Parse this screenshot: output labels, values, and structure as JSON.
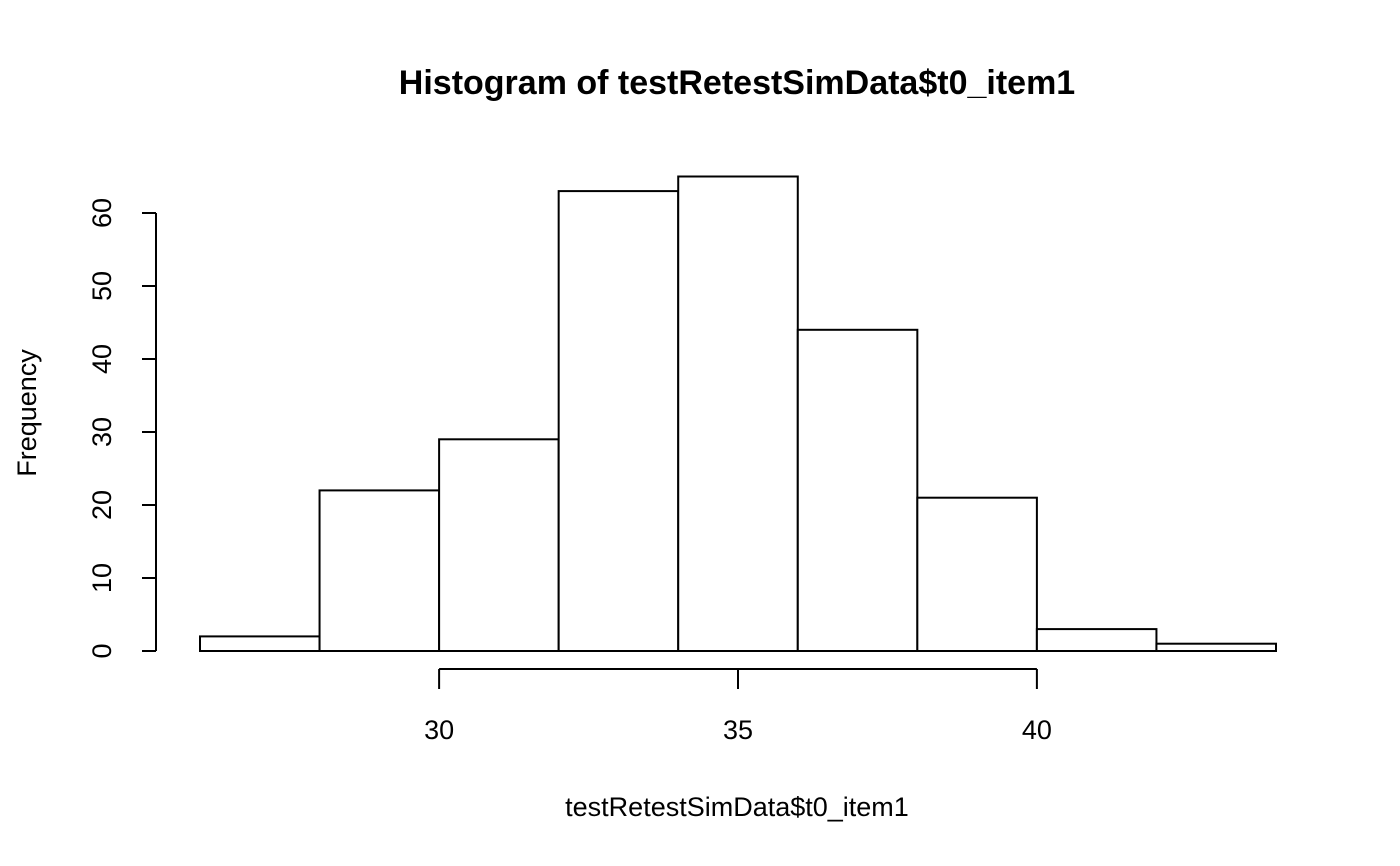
{
  "chart_data": {
    "type": "bar",
    "title": "Histogram of testRetestSimData$t0_item1",
    "xlabel": "testRetestSimData$t0_item1",
    "ylabel": "Frequency",
    "bins": [
      {
        "x0": 26,
        "x1": 28,
        "count": 2
      },
      {
        "x0": 28,
        "x1": 30,
        "count": 22
      },
      {
        "x0": 30,
        "x1": 32,
        "count": 29
      },
      {
        "x0": 32,
        "x1": 34,
        "count": 63
      },
      {
        "x0": 34,
        "x1": 36,
        "count": 65
      },
      {
        "x0": 36,
        "x1": 38,
        "count": 44
      },
      {
        "x0": 38,
        "x1": 40,
        "count": 21
      },
      {
        "x0": 40,
        "x1": 42,
        "count": 3
      },
      {
        "x0": 42,
        "x1": 44,
        "count": 1
      }
    ],
    "xlim": [
      26,
      44
    ],
    "ylim": [
      0,
      65
    ],
    "x_ticks": [
      "30",
      "35",
      "40"
    ],
    "y_ticks": [
      "0",
      "10",
      "20",
      "30",
      "40",
      "50",
      "60"
    ],
    "grid": false,
    "legend": "none"
  }
}
